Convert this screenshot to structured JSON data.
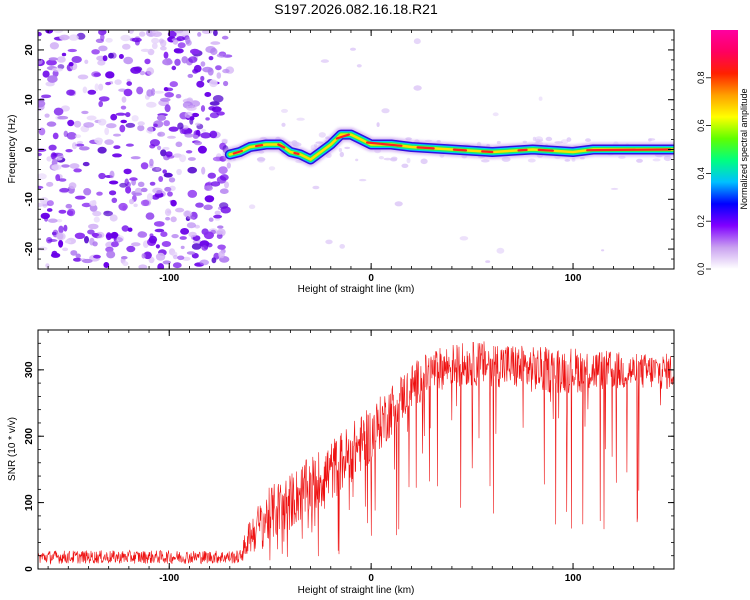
{
  "title": "S197.2026.082.16.18.R21",
  "chart_data": [
    {
      "type": "heatmap",
      "xlabel": "Height of straight line (km)",
      "ylabel": "Frequency (Hz)",
      "xlim": [
        -165,
        150
      ],
      "ylim": [
        -24,
        24
      ],
      "xticks": [
        {
          "v": -100,
          "label": "-100"
        },
        {
          "v": 0,
          "label": "0"
        },
        {
          "v": 100,
          "label": "100"
        }
      ],
      "yticks": [
        {
          "v": -20,
          "label": "-20"
        },
        {
          "v": -10,
          "label": "-10"
        },
        {
          "v": 0,
          "label": "0"
        },
        {
          "v": 10,
          "label": "10"
        },
        {
          "v": 20,
          "label": "20"
        }
      ],
      "noise_region": [
        -165,
        -70
      ],
      "ridge": [
        {
          "x": -70,
          "f": -1.0
        },
        {
          "x": -65,
          "f": -0.5
        },
        {
          "x": -60,
          "f": 0.5
        },
        {
          "x": -52,
          "f": 1.0
        },
        {
          "x": -45,
          "f": 1.0
        },
        {
          "x": -40,
          "f": -0.5
        },
        {
          "x": -35,
          "f": -1.0
        },
        {
          "x": -30,
          "f": -2.0
        },
        {
          "x": -25,
          "f": -0.5
        },
        {
          "x": -20,
          "f": 1.0
        },
        {
          "x": -15,
          "f": 3.0
        },
        {
          "x": -10,
          "f": 3.0
        },
        {
          "x": -5,
          "f": 2.0
        },
        {
          "x": 0,
          "f": 1.0
        },
        {
          "x": 10,
          "f": 1.0
        },
        {
          "x": 20,
          "f": 0.5
        },
        {
          "x": 40,
          "f": 0.0
        },
        {
          "x": 60,
          "f": -0.5
        },
        {
          "x": 80,
          "f": 0.0
        },
        {
          "x": 100,
          "f": -0.5
        },
        {
          "x": 110,
          "f": 0.0
        },
        {
          "x": 150,
          "f": 0.0
        }
      ],
      "colorbar": {
        "label": "Normalized spectral amplitude",
        "range": [
          0,
          1
        ],
        "ticks": [
          {
            "v": 0.0,
            "label": "0.0"
          },
          {
            "v": 0.2,
            "label": "0.2"
          },
          {
            "v": 0.4,
            "label": "0.4"
          },
          {
            "v": 0.6,
            "label": "0.6"
          },
          {
            "v": 0.8,
            "label": "0.8"
          }
        ],
        "stops": [
          "#ffffff",
          "#c9a0f0",
          "#8000ff",
          "#0000ff",
          "#00c0ff",
          "#00ff80",
          "#60ff00",
          "#ffff00",
          "#ffa000",
          "#ff2000",
          "#ff0060",
          "#ff00a0"
        ]
      }
    },
    {
      "type": "line",
      "series": [
        {
          "name": "SNR",
          "color": "#ee1111",
          "envelope": [
            {
              "x": -165,
              "lo": 8,
              "hi": 28
            },
            {
              "x": -100,
              "lo": 8,
              "hi": 28
            },
            {
              "x": -65,
              "lo": 8,
              "hi": 28
            },
            {
              "x": -60,
              "lo": 20,
              "hi": 80
            },
            {
              "x": -50,
              "lo": 40,
              "hi": 125
            },
            {
              "x": -40,
              "lo": 60,
              "hi": 145
            },
            {
              "x": -30,
              "lo": 80,
              "hi": 170
            },
            {
              "x": -20,
              "lo": 100,
              "hi": 195
            },
            {
              "x": -10,
              "lo": 130,
              "hi": 220
            },
            {
              "x": 0,
              "lo": 160,
              "hi": 245
            },
            {
              "x": 10,
              "lo": 200,
              "hi": 280
            },
            {
              "x": 20,
              "lo": 240,
              "hi": 310
            },
            {
              "x": 30,
              "lo": 265,
              "hi": 330
            },
            {
              "x": 40,
              "lo": 275,
              "hi": 340
            },
            {
              "x": 60,
              "lo": 275,
              "hi": 345
            },
            {
              "x": 80,
              "lo": 265,
              "hi": 335
            },
            {
              "x": 100,
              "lo": 265,
              "hi": 335
            },
            {
              "x": 130,
              "lo": 270,
              "hi": 325
            },
            {
              "x": 150,
              "lo": 270,
              "hi": 325
            }
          ]
        }
      ],
      "xlabel": "Height of straight line (km)",
      "ylabel": "SNR (10 * v/v)",
      "xlim": [
        -165,
        150
      ],
      "ylim": [
        0,
        360
      ],
      "xticks": [
        {
          "v": -100,
          "label": "-100"
        },
        {
          "v": 0,
          "label": "0"
        },
        {
          "v": 100,
          "label": "100"
        }
      ],
      "yticks": [
        {
          "v": 0,
          "label": "0"
        },
        {
          "v": 100,
          "label": "100"
        },
        {
          "v": 200,
          "label": "200"
        },
        {
          "v": 300,
          "label": "300"
        }
      ]
    }
  ]
}
